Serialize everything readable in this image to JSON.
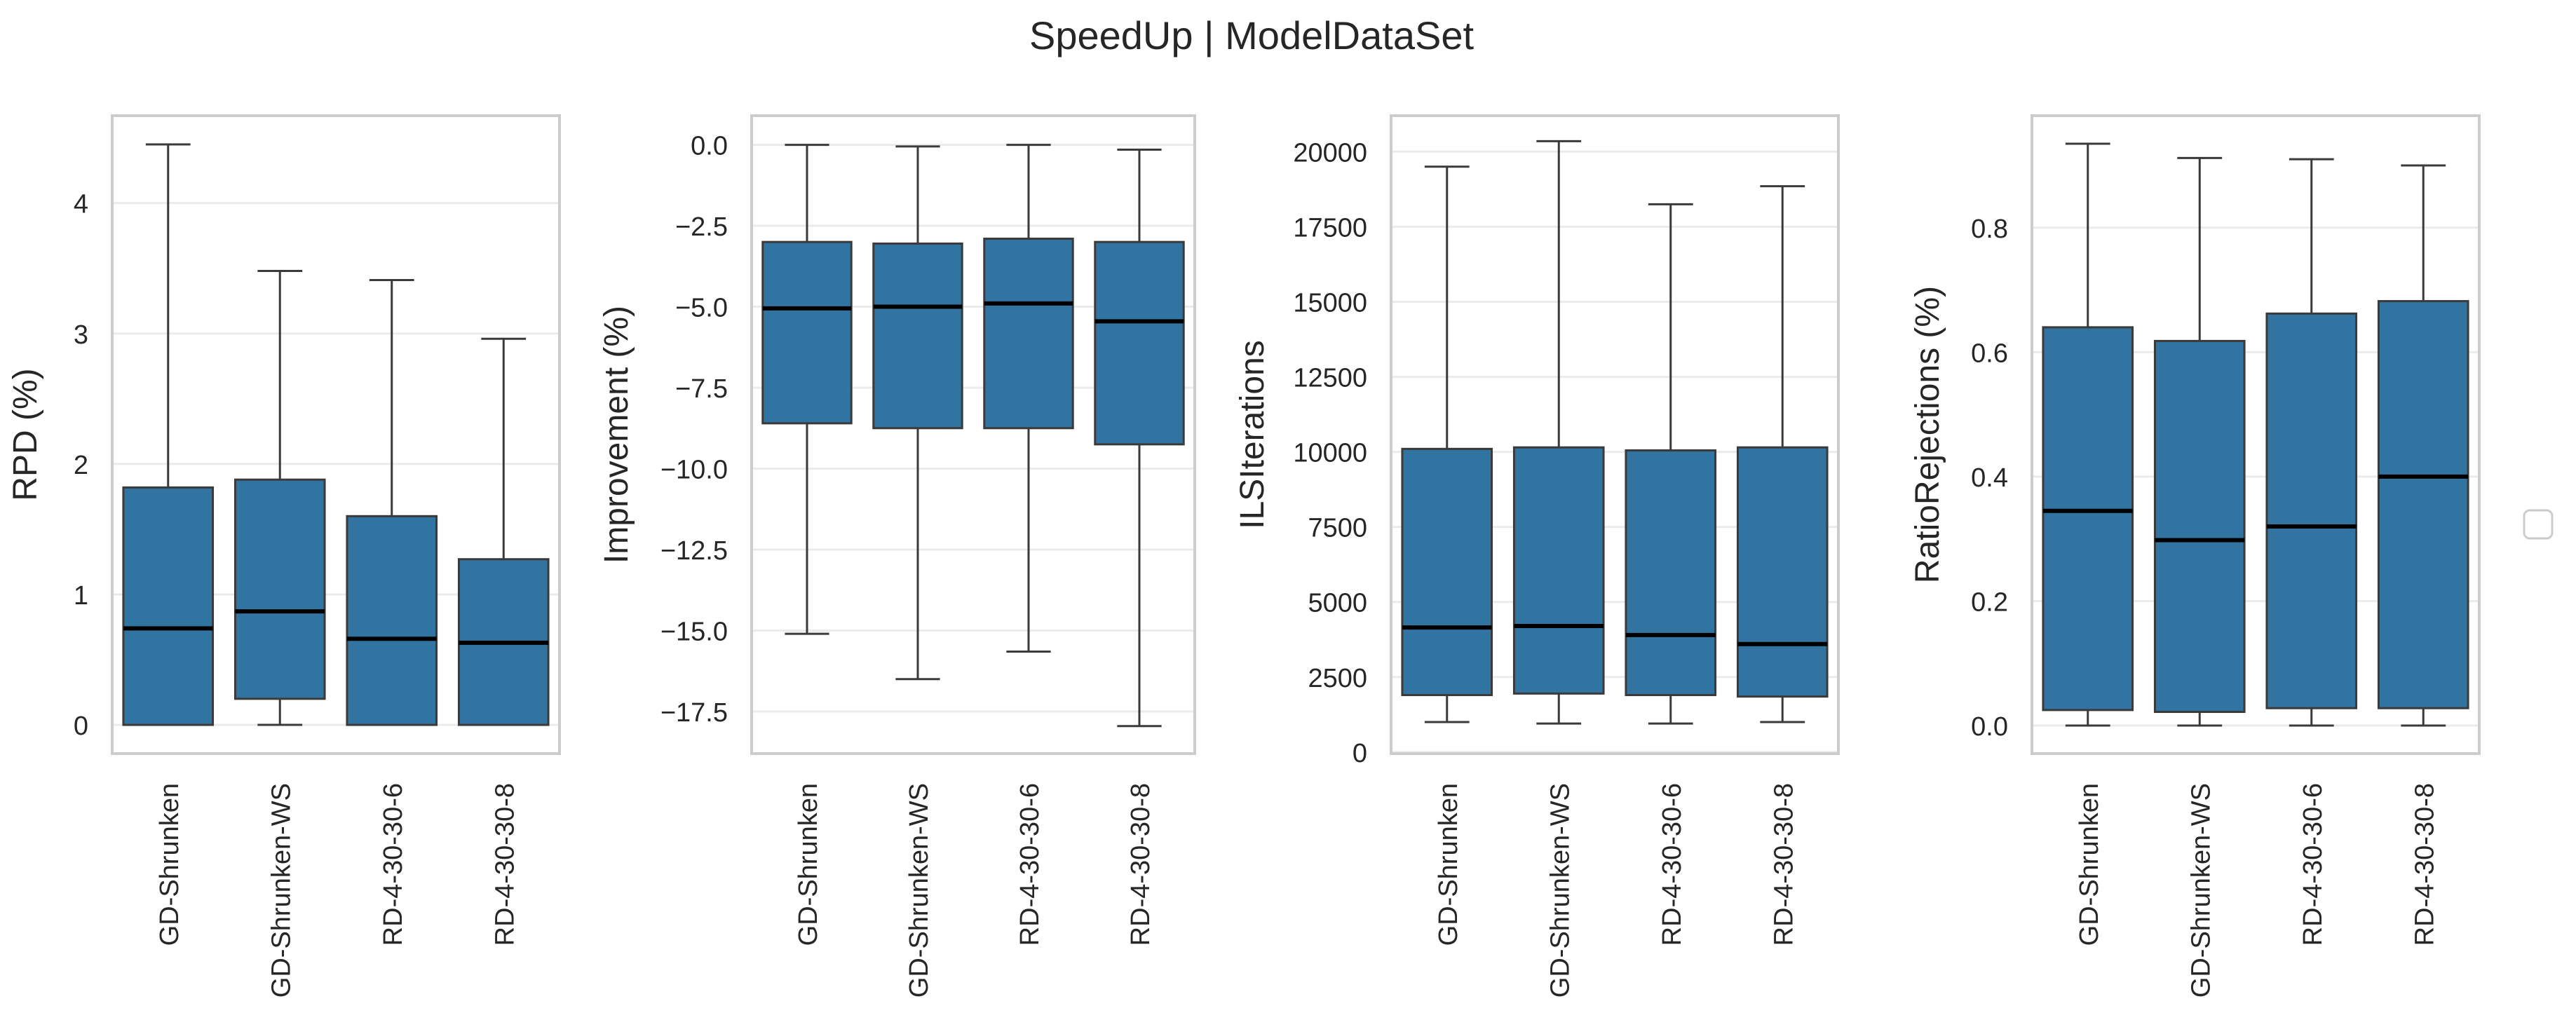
{
  "figure_title": "SpeedUp | ModelDataSet",
  "colors": {
    "box_fill": "#3274a1",
    "box_edge": "#3a3a3a",
    "whisker": "#3a3a3a",
    "median": "#000000",
    "grid": "#ebebeb",
    "frame": "#cccccc",
    "legend_frame": "#cccccc"
  },
  "legend": {
    "entries": []
  },
  "chart_data": [
    {
      "type": "box",
      "title": "",
      "xlabel": "",
      "ylabel": "RPD (%)",
      "categories": [
        "GD-Shrunken",
        "GD-Shrunken-WS",
        "RD-4-30-30-6",
        "RD-4-30-30-8"
      ],
      "ylim": [
        -0.22,
        4.67
      ],
      "yticks": [
        0,
        1,
        2,
        3,
        4
      ],
      "ytick_labels": [
        "0",
        "1",
        "2",
        "3",
        "4"
      ],
      "series": [
        {
          "category": "GD-Shrunken",
          "min": 0.0,
          "q1": 0.0,
          "median": 0.74,
          "q3": 1.82,
          "max": 4.45
        },
        {
          "category": "GD-Shrunken-WS",
          "min": 0.0,
          "q1": 0.2,
          "median": 0.87,
          "q3": 1.88,
          "max": 3.48
        },
        {
          "category": "RD-4-30-30-6",
          "min": 0.0,
          "q1": 0.0,
          "median": 0.66,
          "q3": 1.6,
          "max": 3.41
        },
        {
          "category": "RD-4-30-30-8",
          "min": 0.0,
          "q1": 0.0,
          "median": 0.63,
          "q3": 1.27,
          "max": 2.96
        }
      ]
    },
    {
      "type": "box",
      "title": "",
      "xlabel": "",
      "ylabel": "Improvement (%)",
      "categories": [
        "GD-Shrunken",
        "GD-Shrunken-WS",
        "RD-4-30-30-6",
        "RD-4-30-30-8"
      ],
      "ylim": [
        -18.8,
        0.9
      ],
      "yticks": [
        0,
        -2.5,
        -5,
        -7.5,
        -10,
        -12.5,
        -15,
        -17.5
      ],
      "ytick_labels": [
        "0.0",
        "−2.5",
        "−5.0",
        "−7.5",
        "−10.0",
        "−12.5",
        "−15.0",
        "−17.5"
      ],
      "series": [
        {
          "category": "GD-Shrunken",
          "min": -15.1,
          "q1": -8.6,
          "median": -5.05,
          "q3": -3.0,
          "max": 0.0
        },
        {
          "category": "GD-Shrunken-WS",
          "min": -16.5,
          "q1": -8.75,
          "median": -5.0,
          "q3": -3.05,
          "max": -0.05
        },
        {
          "category": "RD-4-30-30-6",
          "min": -15.65,
          "q1": -8.75,
          "median": -4.9,
          "q3": -2.9,
          "max": 0.0
        },
        {
          "category": "RD-4-30-30-8",
          "min": -17.95,
          "q1": -9.25,
          "median": -5.45,
          "q3": -3.0,
          "max": -0.15
        }
      ]
    },
    {
      "type": "box",
      "title": "",
      "xlabel": "",
      "ylabel": "ILSIterations",
      "categories": [
        "GD-Shrunken",
        "GD-Shrunken-WS",
        "RD-4-30-30-6",
        "RD-4-30-30-8"
      ],
      "ylim": [
        -50,
        21200
      ],
      "yticks": [
        0,
        2500,
        5000,
        7500,
        10000,
        12500,
        15000,
        17500,
        20000
      ],
      "ytick_labels": [
        "0",
        "2500",
        "5000",
        "7500",
        "10000",
        "12500",
        "15000",
        "17500",
        "20000"
      ],
      "series": [
        {
          "category": "GD-Shrunken",
          "min": 1000,
          "q1": 1900,
          "median": 4150,
          "q3": 10100,
          "max": 19500
        },
        {
          "category": "GD-Shrunken-WS",
          "min": 950,
          "q1": 1950,
          "median": 4200,
          "q3": 10150,
          "max": 20350
        },
        {
          "category": "RD-4-30-30-6",
          "min": 950,
          "q1": 1900,
          "median": 3900,
          "q3": 10050,
          "max": 18250
        },
        {
          "category": "RD-4-30-30-8",
          "min": 1000,
          "q1": 1850,
          "median": 3600,
          "q3": 10150,
          "max": 18850
        }
      ]
    },
    {
      "type": "box",
      "title": "",
      "xlabel": "",
      "ylabel": "RatioRejections (%)",
      "categories": [
        "GD-Shrunken",
        "GD-Shrunken-WS",
        "RD-4-30-30-6",
        "RD-4-30-30-8"
      ],
      "ylim": [
        -0.045,
        0.98
      ],
      "yticks": [
        0.0,
        0.2,
        0.4,
        0.6,
        0.8
      ],
      "ytick_labels": [
        "0.0",
        "0.2",
        "0.4",
        "0.6",
        "0.8"
      ],
      "series": [
        {
          "category": "GD-Shrunken",
          "min": 0.0,
          "q1": 0.025,
          "median": 0.345,
          "q3": 0.64,
          "max": 0.935
        },
        {
          "category": "GD-Shrunken-WS",
          "min": 0.0,
          "q1": 0.022,
          "median": 0.298,
          "q3": 0.618,
          "max": 0.912
        },
        {
          "category": "RD-4-30-30-6",
          "min": 0.0,
          "q1": 0.028,
          "median": 0.32,
          "q3": 0.662,
          "max": 0.91
        },
        {
          "category": "RD-4-30-30-8",
          "min": 0.0,
          "q1": 0.028,
          "median": 0.4,
          "q3": 0.682,
          "max": 0.9
        }
      ]
    }
  ]
}
